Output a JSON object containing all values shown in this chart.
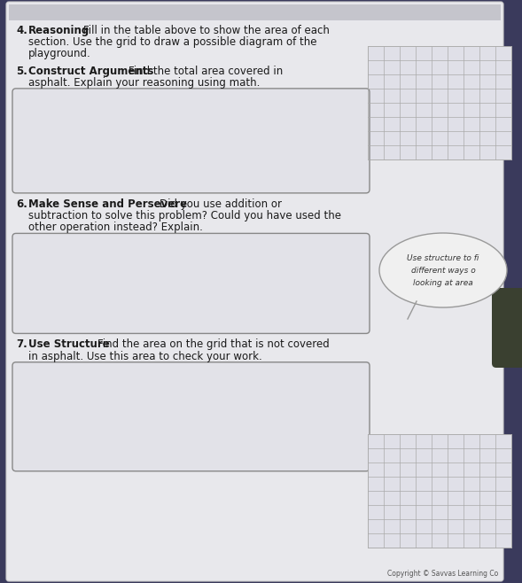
{
  "bg_color": "#3a3a5c",
  "page_color": "#e8e8ec",
  "page_edge_color": "#cccccc",
  "text_color": "#1a1a1a",
  "box_face_color": "#e2e2e8",
  "box_edge_color": "#888888",
  "grid_color": "#aaaaaa",
  "grid_bg": "#e0e0e8",
  "bubble_color": "#f0f0f0",
  "bubble_edge_color": "#999999",
  "bubble_text_color": "#333333",
  "copyright_color": "#555555",
  "item4_num": "4.",
  "item4_bold": "Reasoning",
  "item4_text": " Fill in the table above to show the area of each section. Use the grid to draw a possible diagram of the playground.",
  "item5_num": "5.",
  "item5_bold": "Construct Arguments",
  "item5_text": " Find the total area covered in asphalt. Explain your reasoning using math.",
  "item6_num": "6.",
  "item6_bold": "Make Sense and Persevere",
  "item6_text": " Did you use addition or subtraction to solve this problem? Could you have used the other operation instead? Explain.",
  "item7_num": "7.",
  "item7_bold": "Use Structure",
  "item7_text": " Find the area on the grid that is not covered in asphalt. Use this area to check your work.",
  "bubble_lines": [
    "Use structure to fi",
    "different ways o",
    "looking at area"
  ],
  "copyright_text": "Copyright © Savvas Learning Co",
  "grid_rows": 8,
  "grid_cols": 9,
  "font_size": 8.5,
  "bold_size": 8.5
}
